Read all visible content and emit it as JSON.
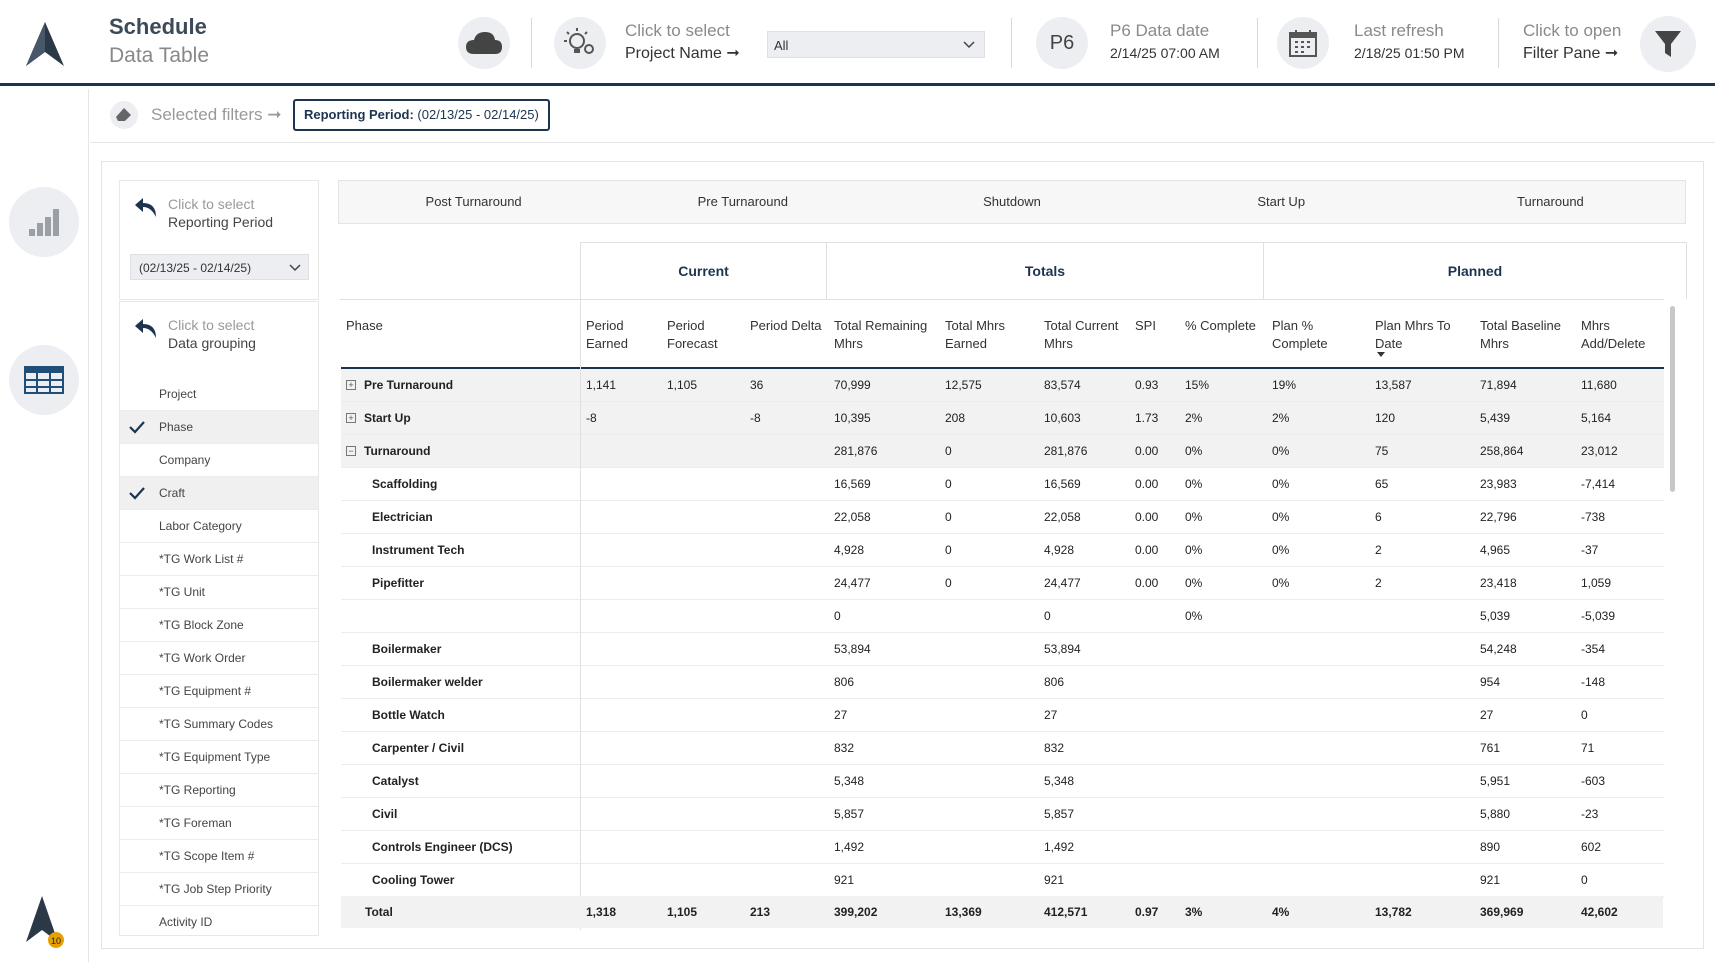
{
  "header": {
    "title": "Schedule",
    "subtitle": "Data Table",
    "project_hint": "Click to select",
    "project_label": "Project Name ➞",
    "project_value": "All",
    "p6_badge": "P6",
    "p6_label": "P6 Data date",
    "p6_value": "2/14/25 07:00 AM",
    "refresh_label": "Last refresh",
    "refresh_value": "2/18/25 01:50 PM",
    "filter_hint": "Click to open",
    "filter_label": "Filter Pane ➞"
  },
  "filterbar": {
    "selected_label": "Selected filters ➞",
    "chip_key": "Reporting Period:",
    "chip_value": "(02/13/25 - 02/14/25)"
  },
  "slicers": {
    "period_hint": "Click to select",
    "period_label": "Reporting Period",
    "period_value": "(02/13/25 - 02/14/25)",
    "group_hint": "Click to select",
    "group_label": "Data grouping",
    "group_items": [
      {
        "label": "Project",
        "checked": false
      },
      {
        "label": "Phase",
        "checked": true
      },
      {
        "label": "Company",
        "checked": false
      },
      {
        "label": "Craft",
        "checked": true
      },
      {
        "label": "Labor Category",
        "checked": false
      },
      {
        "label": "*TG Work List #",
        "checked": false
      },
      {
        "label": "*TG Unit",
        "checked": false
      },
      {
        "label": "*TG Block Zone",
        "checked": false
      },
      {
        "label": "*TG Work Order",
        "checked": false
      },
      {
        "label": "*TG Equipment #",
        "checked": false
      },
      {
        "label": "*TG Summary Codes",
        "checked": false
      },
      {
        "label": "*TG Equipment Type",
        "checked": false
      },
      {
        "label": "*TG Reporting",
        "checked": false
      },
      {
        "label": "*TG Foreman",
        "checked": false
      },
      {
        "label": "*TG Scope Item #",
        "checked": false
      },
      {
        "label": "*TG Job Step Priority",
        "checked": false
      },
      {
        "label": "Activity ID",
        "checked": false
      }
    ]
  },
  "tabs": [
    "Post Turnaround",
    "Pre Turnaround",
    "Shutdown",
    "Start Up",
    "Turnaround"
  ],
  "groups": {
    "current": "Current",
    "totals": "Totals",
    "planned": "Planned"
  },
  "columns": [
    {
      "l1": "Phase",
      "l2": ""
    },
    {
      "l1": "Period",
      "l2": "Earned"
    },
    {
      "l1": "Period",
      "l2": "Forecast"
    },
    {
      "l1": "Period Delta",
      "l2": ""
    },
    {
      "l1": "Total Remaining",
      "l2": "Mhrs"
    },
    {
      "l1": "Total Mhrs",
      "l2": "Earned"
    },
    {
      "l1": "Total Current",
      "l2": "Mhrs"
    },
    {
      "l1": "SPI",
      "l2": ""
    },
    {
      "l1": "% Complete",
      "l2": ""
    },
    {
      "l1": "Plan %",
      "l2": "Complete"
    },
    {
      "l1": "Plan Mhrs To",
      "l2": "Date"
    },
    {
      "l1": "Total Baseline",
      "l2": "Mhrs"
    },
    {
      "l1": "Mhrs",
      "l2": "Add/Delete"
    }
  ],
  "rows": [
    {
      "type": "group",
      "expander": "+",
      "cells": [
        "Pre Turnaround",
        "1,141",
        "1,105",
        "36",
        "70,999",
        "12,575",
        "83,574",
        "0.93",
        "15%",
        "19%",
        "13,587",
        "71,894",
        "11,680"
      ]
    },
    {
      "type": "group",
      "expander": "+",
      "cells": [
        "Start Up",
        "-8",
        "",
        "-8",
        "10,395",
        "208",
        "10,603",
        "1.73",
        "2%",
        "2%",
        "120",
        "5,439",
        "5,164"
      ]
    },
    {
      "type": "group",
      "expander": "−",
      "cells": [
        "Turnaround",
        "",
        "",
        "",
        "281,876",
        "0",
        "281,876",
        "0.00",
        "0%",
        "0%",
        "75",
        "258,864",
        "23,012"
      ]
    },
    {
      "type": "child",
      "cells": [
        "Scaffolding",
        "",
        "",
        "",
        "16,569",
        "0",
        "16,569",
        "0.00",
        "0%",
        "0%",
        "65",
        "23,983",
        "-7,414"
      ]
    },
    {
      "type": "child",
      "cells": [
        "Electrician",
        "",
        "",
        "",
        "22,058",
        "0",
        "22,058",
        "0.00",
        "0%",
        "0%",
        "6",
        "22,796",
        "-738"
      ]
    },
    {
      "type": "child",
      "cells": [
        "Instrument Tech",
        "",
        "",
        "",
        "4,928",
        "0",
        "4,928",
        "0.00",
        "0%",
        "0%",
        "2",
        "4,965",
        "-37"
      ]
    },
    {
      "type": "child",
      "cells": [
        "Pipefitter",
        "",
        "",
        "",
        "24,477",
        "0",
        "24,477",
        "0.00",
        "0%",
        "0%",
        "2",
        "23,418",
        "1,059"
      ]
    },
    {
      "type": "child",
      "cells": [
        "",
        "",
        "",
        "",
        "0",
        "",
        "0",
        "",
        "0%",
        "",
        "",
        "5,039",
        "-5,039"
      ]
    },
    {
      "type": "child",
      "cells": [
        "Boilermaker",
        "",
        "",
        "",
        "53,894",
        "",
        "53,894",
        "",
        "",
        "",
        "",
        "54,248",
        "-354"
      ]
    },
    {
      "type": "child",
      "cells": [
        "Boilermaker welder",
        "",
        "",
        "",
        "806",
        "",
        "806",
        "",
        "",
        "",
        "",
        "954",
        "-148"
      ]
    },
    {
      "type": "child",
      "cells": [
        "Bottle Watch",
        "",
        "",
        "",
        "27",
        "",
        "27",
        "",
        "",
        "",
        "",
        "27",
        "0"
      ]
    },
    {
      "type": "child",
      "cells": [
        "Carpenter / Civil",
        "",
        "",
        "",
        "832",
        "",
        "832",
        "",
        "",
        "",
        "",
        "761",
        "71"
      ]
    },
    {
      "type": "child",
      "cells": [
        "Catalyst",
        "",
        "",
        "",
        "5,348",
        "",
        "5,348",
        "",
        "",
        "",
        "",
        "5,951",
        "-603"
      ]
    },
    {
      "type": "child",
      "cells": [
        "Civil",
        "",
        "",
        "",
        "5,857",
        "",
        "5,857",
        "",
        "",
        "",
        "",
        "5,880",
        "-23"
      ]
    },
    {
      "type": "child",
      "cells": [
        "Controls Engineer (DCS)",
        "",
        "",
        "",
        "1,492",
        "",
        "1,492",
        "",
        "",
        "",
        "",
        "890",
        "602"
      ]
    },
    {
      "type": "child",
      "cells": [
        "Cooling Tower",
        "",
        "",
        "",
        "921",
        "",
        "921",
        "",
        "",
        "",
        "",
        "921",
        "0"
      ]
    }
  ],
  "total": [
    "Total",
    "1,318",
    "1,105",
    "213",
    "399,202",
    "13,369",
    "412,571",
    "0.97",
    "3%",
    "4%",
    "13,782",
    "369,969",
    "42,602"
  ],
  "colors": {
    "navy": "#1d3451",
    "bg_gray": "#eceef1"
  },
  "icons": [
    "app-logo-icon",
    "cloud-icon",
    "lightbulb-gear-icon",
    "calendar-icon",
    "filter-funnel-icon",
    "eraser-icon",
    "bar-chart-icon",
    "table-grid-icon",
    "undo-arrow-icon",
    "checkmark-icon",
    "chevron-down-icon"
  ]
}
